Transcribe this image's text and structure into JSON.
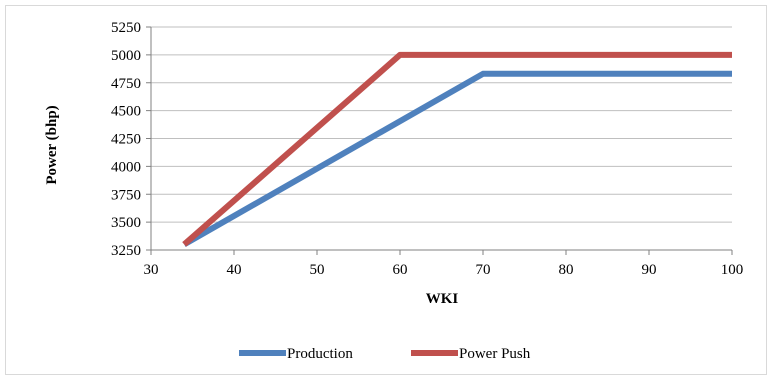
{
  "chart_data": {
    "type": "line",
    "title": "",
    "xlabel": "WKI",
    "ylabel": "Power (bhp)",
    "xlim": [
      30,
      100
    ],
    "ylim": [
      3250,
      5250
    ],
    "xticks": [
      30,
      40,
      50,
      60,
      70,
      80,
      90,
      100
    ],
    "yticks": [
      3250,
      3500,
      3750,
      4000,
      4250,
      4500,
      4750,
      5000,
      5250
    ],
    "grid": "horizontal",
    "legend_position": "bottom",
    "series": [
      {
        "name": "Production",
        "color": "#4f81bd",
        "x": [
          34,
          70,
          100
        ],
        "y": [
          3300,
          4830,
          4830
        ]
      },
      {
        "name": "Power Push",
        "color": "#c0504d",
        "x": [
          34,
          60,
          100
        ],
        "y": [
          3300,
          5000,
          5000
        ]
      }
    ]
  }
}
